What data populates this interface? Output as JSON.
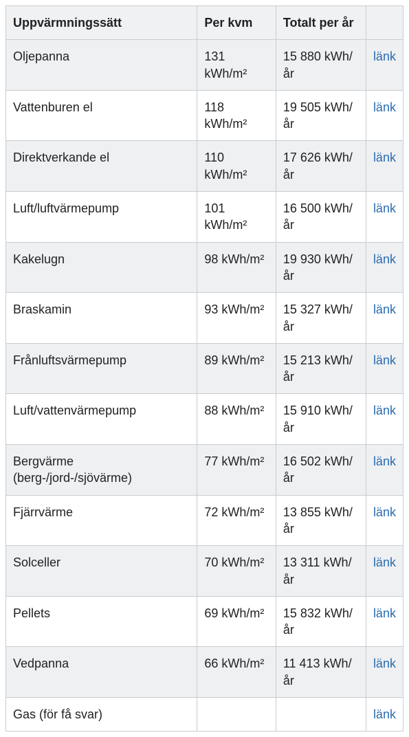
{
  "table": {
    "columns": [
      "Uppvärmningssätt",
      "Per kvm",
      "Totalt per år",
      ""
    ],
    "link_label": "länk",
    "header_bg": "#f0f1f3",
    "row_bg_odd": "#eef0f2",
    "row_bg_even": "#ffffff",
    "border_color": "#c9ccd1",
    "link_color": "#2b6cb0",
    "rows": [
      {
        "name": "Oljepanna",
        "per_kvm": "131 kWh/m²",
        "totalt": "15 880 kWh/år"
      },
      {
        "name": "Vattenburen el",
        "per_kvm": "118 kWh/m²",
        "totalt": "19 505 kWh/år"
      },
      {
        "name": "Direktverkande el",
        "per_kvm": "110 kWh/m²",
        "totalt": "17 626 kWh/år"
      },
      {
        "name": "Luft/luftvärmepump",
        "per_kvm": "101 kWh/m²",
        "totalt": "16 500 kWh/år"
      },
      {
        "name": "Kakelugn",
        "per_kvm": "98 kWh/m²",
        "totalt": "19 930 kWh/år"
      },
      {
        "name": "Braskamin",
        "per_kvm": "93 kWh/m²",
        "totalt": "15 327 kWh/år"
      },
      {
        "name": "Frånluftsvärmepump",
        "per_kvm": "89 kWh/m²",
        "totalt": "15 213 kWh/år"
      },
      {
        "name": "Luft/vattenvärmepump",
        "per_kvm": "88 kWh/m²",
        "totalt": "15 910 kWh/år"
      },
      {
        "name": "Bergvärme (berg-/jord-/sjövärme)",
        "per_kvm": "77 kWh/m²",
        "totalt": "16 502 kWh/år"
      },
      {
        "name": "Fjärrvärme",
        "per_kvm": "72 kWh/m²",
        "totalt": "13 855 kWh/år"
      },
      {
        "name": "Solceller",
        "per_kvm": "70 kWh/m²",
        "totalt": "13 311 kWh/år"
      },
      {
        "name": "Pellets",
        "per_kvm": "69 kWh/m²",
        "totalt": "15 832 kWh/år"
      },
      {
        "name": "Vedpanna",
        "per_kvm": "66 kWh/m²",
        "totalt": "11 413 kWh/år"
      },
      {
        "name": "Gas (för få svar)",
        "per_kvm": "",
        "totalt": ""
      }
    ]
  }
}
